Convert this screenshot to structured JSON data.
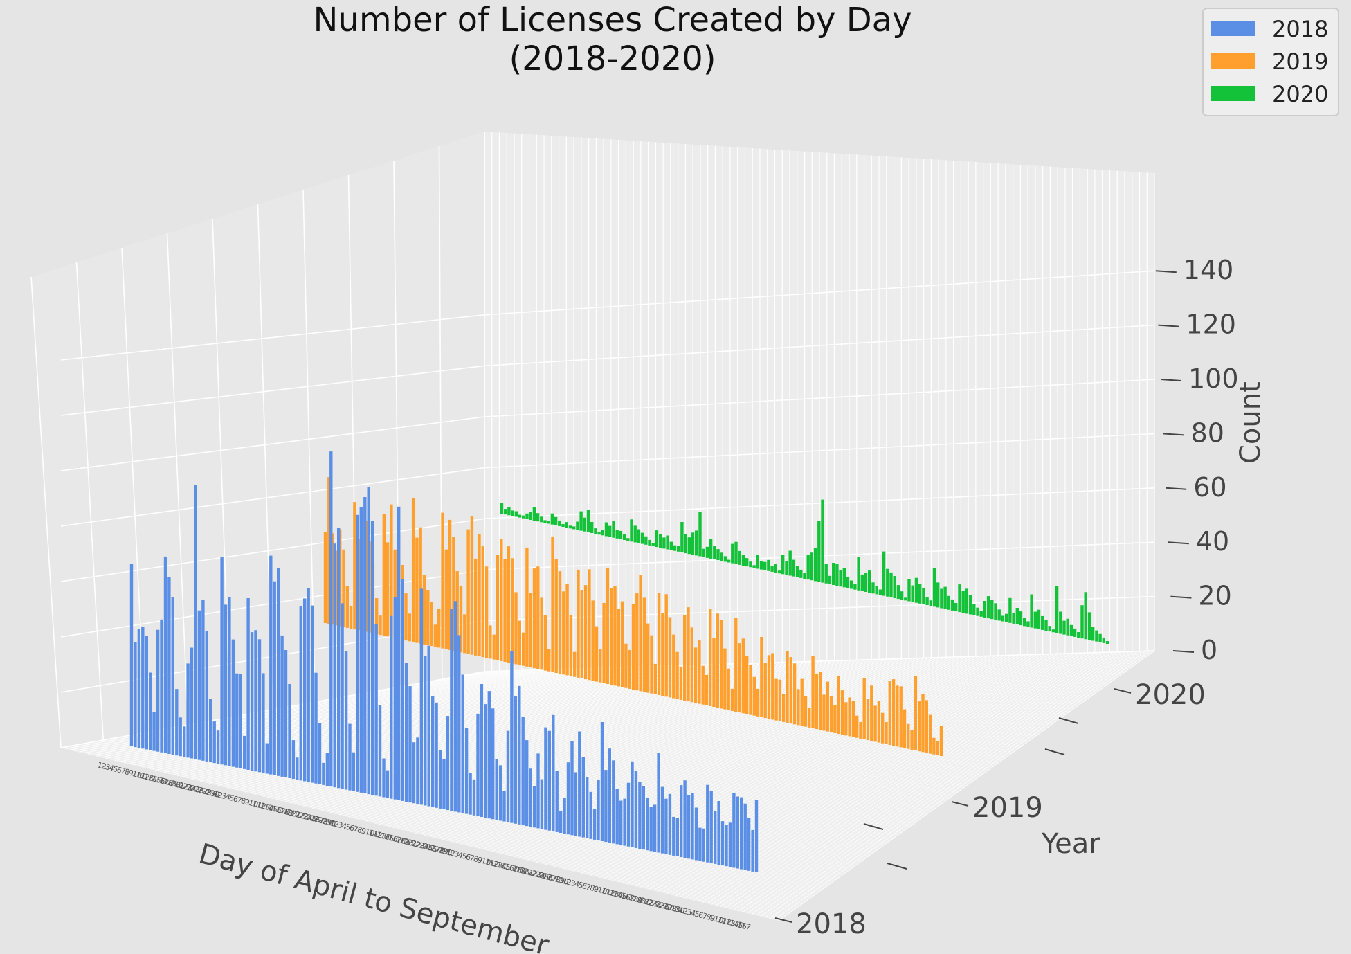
{
  "chart_data": {
    "type": "bar",
    "title": "Number of Licenses Created by Day\n(2018-2020)",
    "title_lines": [
      "Number of Licenses Created by Day",
      "(2018-2020)"
    ],
    "xlabel": "Day of April to September",
    "ylabel": "Year",
    "zlabel": "Count",
    "zlim": [
      0,
      160
    ],
    "z_ticks": [
      "0",
      "20",
      "40",
      "60",
      "80",
      "100",
      "120",
      "140"
    ],
    "y_ticks": [
      "2018",
      "2019",
      "2020"
    ],
    "legend_position": "top-right",
    "grid": true,
    "series": [
      {
        "name": "2018",
        "color": "#5b8fe6",
        "values": [
          66,
          38,
          43,
          44,
          41,
          28,
          14,
          44,
          48,
          71,
          64,
          57,
          24,
          14,
          11,
          34,
          40,
          99,
          54,
          58,
          47,
          23,
          15,
          12,
          75,
          58,
          61,
          46,
          34,
          34,
          12,
          62,
          50,
          51,
          48,
          36,
          11,
          79,
          70,
          75,
          51,
          46,
          34,
          14,
          8,
          63,
          66,
          70,
          64,
          40,
          22,
          8,
          12,
          121,
          88,
          94,
          67,
          50,
          24,
          14,
          100,
          103,
          107,
          111,
          99,
          62,
          33,
          14,
          10,
          66,
          73,
          106,
          80,
          50,
          42,
          22,
          24,
          78,
          54,
          58,
          40,
          38,
          21,
          18,
          34,
          73,
          76,
          64,
          50,
          31,
          15,
          13,
          37,
          48,
          41,
          46,
          40,
          22,
          20,
          11,
          33,
          62,
          46,
          50,
          39,
          31,
          21,
          15,
          27,
          18,
          37,
          36,
          42,
          22,
          8,
          13,
          26,
          34,
          23,
          38,
          29,
          22,
          17,
          11,
          22,
          43,
          26,
          34,
          30,
          20,
          16,
          17,
          23,
          31,
          28,
          24,
          23,
          19,
          16,
          17,
          36,
          24,
          20,
          22,
          14,
          14,
          26,
          28,
          23,
          24,
          19,
          12,
          12,
          28,
          26,
          19,
          23,
          16,
          15,
          16,
          27,
          26,
          26,
          24,
          19,
          15,
          26
        ]
      },
      {
        "name": "2019",
        "color": "#ffa02e",
        "values": [
          33,
          53,
          33,
          27,
          35,
          28,
          15,
          8,
          46,
          33,
          44,
          40,
          33,
          25,
          13,
          7,
          44,
          34,
          48,
          32,
          36,
          27,
          17,
          10,
          52,
          38,
          42,
          25,
          20,
          16,
          8,
          14,
          49,
          36,
          47,
          41,
          29,
          24,
          14,
          45,
          50,
          35,
          44,
          40,
          33,
          12,
          9,
          38,
          44,
          37,
          42,
          38,
          26,
          16,
          12,
          43,
          27,
          36,
          37,
          26,
          20,
          8,
          49,
          41,
          37,
          30,
          33,
          22,
          9,
          39,
          32,
          34,
          40,
          29,
          20,
          12,
          29,
          42,
          35,
          36,
          28,
          31,
          16,
          14,
          31,
          35,
          42,
          34,
          25,
          21,
          11,
          37,
          30,
          37,
          29,
          23,
          17,
          12,
          31,
          34,
          27,
          20,
          23,
          14,
          11,
          35,
          25,
          34,
          32,
          22,
          15,
          8,
          34,
          25,
          27,
          21,
          18,
          14,
          10,
          29,
          20,
          23,
          24,
          15,
          15,
          10,
          26,
          24,
          22,
          13,
          17,
          11,
          7,
          26,
          20,
          21,
          13,
          18,
          13,
          10,
          21,
          16,
          12,
          14,
          13,
          8,
          6,
          22,
          15,
          20,
          13,
          15,
          11,
          8,
          23,
          24,
          22,
          22,
          14,
          9,
          7,
          27,
          18,
          21,
          19,
          14,
          6,
          5,
          11
        ]
      },
      {
        "name": "2020",
        "color": "#13c238",
        "values": [
          4,
          2,
          3,
          2,
          2,
          1,
          1,
          2,
          3,
          5,
          3,
          2,
          1,
          1,
          4,
          3,
          2,
          1,
          2,
          1,
          1,
          3,
          7,
          5,
          8,
          4,
          2,
          1,
          2,
          5,
          4,
          6,
          3,
          3,
          2,
          1,
          8,
          6,
          5,
          4,
          3,
          2,
          1,
          6,
          5,
          4,
          5,
          3,
          2,
          2,
          11,
          7,
          6,
          8,
          9,
          16,
          3,
          4,
          7,
          5,
          4,
          3,
          2,
          1,
          7,
          8,
          5,
          4,
          3,
          2,
          1,
          5,
          3,
          3,
          4,
          2,
          3,
          1,
          7,
          5,
          9,
          6,
          4,
          3,
          2,
          9,
          10,
          12,
          22,
          30,
          7,
          3,
          8,
          8,
          6,
          7,
          4,
          3,
          2,
          12,
          6,
          7,
          8,
          4,
          3,
          2,
          16,
          10,
          9,
          8,
          5,
          3,
          1,
          8,
          6,
          9,
          7,
          6,
          3,
          2,
          14,
          9,
          7,
          8,
          5,
          4,
          3,
          10,
          8,
          9,
          7,
          4,
          3,
          2,
          6,
          8,
          7,
          6,
          4,
          2,
          3,
          9,
          4,
          6,
          5,
          3,
          2,
          12,
          6,
          7,
          5,
          4,
          2,
          1,
          17,
          8,
          5,
          6,
          4,
          3,
          2,
          12,
          17,
          10,
          5,
          4,
          3,
          2,
          1
        ]
      }
    ]
  }
}
